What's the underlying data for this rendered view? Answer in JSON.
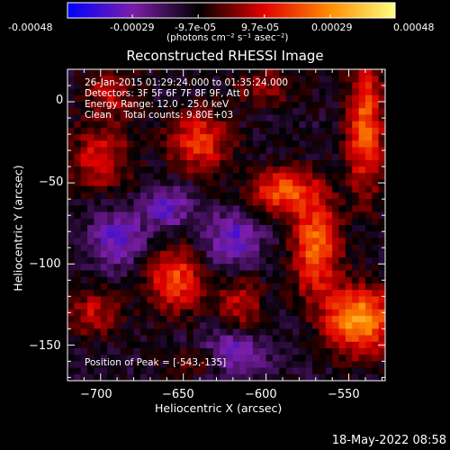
{
  "colorbar": {
    "tick_labels": [
      "-0.00048",
      "-0.00029",
      "-9.7e-05",
      "9.7e-05",
      "0.00029",
      "0.00048"
    ],
    "tick_values": [
      -0.00048,
      -0.00029,
      -9.7e-05,
      9.7e-05,
      0.00029,
      0.00048
    ],
    "range": [
      -0.00048,
      0.00048
    ],
    "unit_label": "(photons cm⁻² s⁻¹ asec⁻²)"
  },
  "info": {
    "time_range": "26-Jan-2015 01:29:24.000 to 01:35:24.000",
    "detectors": "Detectors: 3F 5F 6F 7F 8F 9F, Att 0",
    "energy_range": "Energy Range: 12.0 - 25.0 keV",
    "clean_counts": "Clean    Total counts: 9.80E+03",
    "peak": "Position of Peak = [-543,-135]"
  },
  "footer": {
    "timestamp": "18-May-2022 08:58"
  },
  "chart_data": {
    "type": "heatmap",
    "title": "Reconstructed RHESSI Image",
    "xlabel": "Heliocentric X (arcsec)",
    "ylabel": "Heliocentric Y (arcsec)",
    "xlim": [
      -720,
      -528
    ],
    "ylim": [
      -172,
      20
    ],
    "x_ticks": [
      -700,
      -650,
      -600,
      -550
    ],
    "y_ticks": [
      -150,
      -100,
      -50,
      0
    ],
    "x_tick_labels": [
      "−700",
      "−650",
      "−600",
      "−550"
    ],
    "y_tick_labels": [
      "−150",
      "−100",
      "−50",
      "0"
    ],
    "colormap": [
      "#0000ff",
      "#7b1ea8",
      "#000000",
      "#e10000",
      "#ff8c00",
      "#ffff80"
    ],
    "peak": [
      -543,
      -135
    ],
    "sources": [
      {
        "x": -543,
        "y": -135,
        "sx": 14,
        "sy": 14,
        "amp": 0.00046
      },
      {
        "x": -570,
        "y": -90,
        "sx": 10,
        "sy": 22,
        "amp": 0.00036
      },
      {
        "x": -590,
        "y": -55,
        "sx": 14,
        "sy": 10,
        "amp": 0.00032
      },
      {
        "x": -640,
        "y": -25,
        "sx": 13,
        "sy": 13,
        "amp": 0.0003
      },
      {
        "x": -540,
        "y": -15,
        "sx": 8,
        "sy": 30,
        "amp": 0.00034
      },
      {
        "x": -655,
        "y": -110,
        "sx": 12,
        "sy": 14,
        "amp": 0.00032
      },
      {
        "x": -615,
        "y": -125,
        "sx": 10,
        "sy": 12,
        "amp": 0.0002
      },
      {
        "x": -700,
        "y": -35,
        "sx": 14,
        "sy": 14,
        "amp": 0.00022
      },
      {
        "x": -695,
        "y": 5,
        "sx": 12,
        "sy": 12,
        "amp": 0.00018
      },
      {
        "x": -705,
        "y": -130,
        "sx": 12,
        "sy": 10,
        "amp": 0.0002
      },
      {
        "x": -600,
        "y": 10,
        "sx": 14,
        "sy": 8,
        "amp": 0.00016
      },
      {
        "x": -640,
        "y": -160,
        "sx": 12,
        "sy": 6,
        "amp": 0.00015
      },
      {
        "x": -660,
        "y": -65,
        "sx": 10,
        "sy": 10,
        "amp": -0.0002
      },
      {
        "x": -620,
        "y": -85,
        "sx": 12,
        "sy": 12,
        "amp": -0.00022
      },
      {
        "x": -690,
        "y": -85,
        "sx": 12,
        "sy": 12,
        "amp": -0.0002
      },
      {
        "x": -620,
        "y": -155,
        "sx": 14,
        "sy": 10,
        "amp": -0.00022
      }
    ]
  }
}
